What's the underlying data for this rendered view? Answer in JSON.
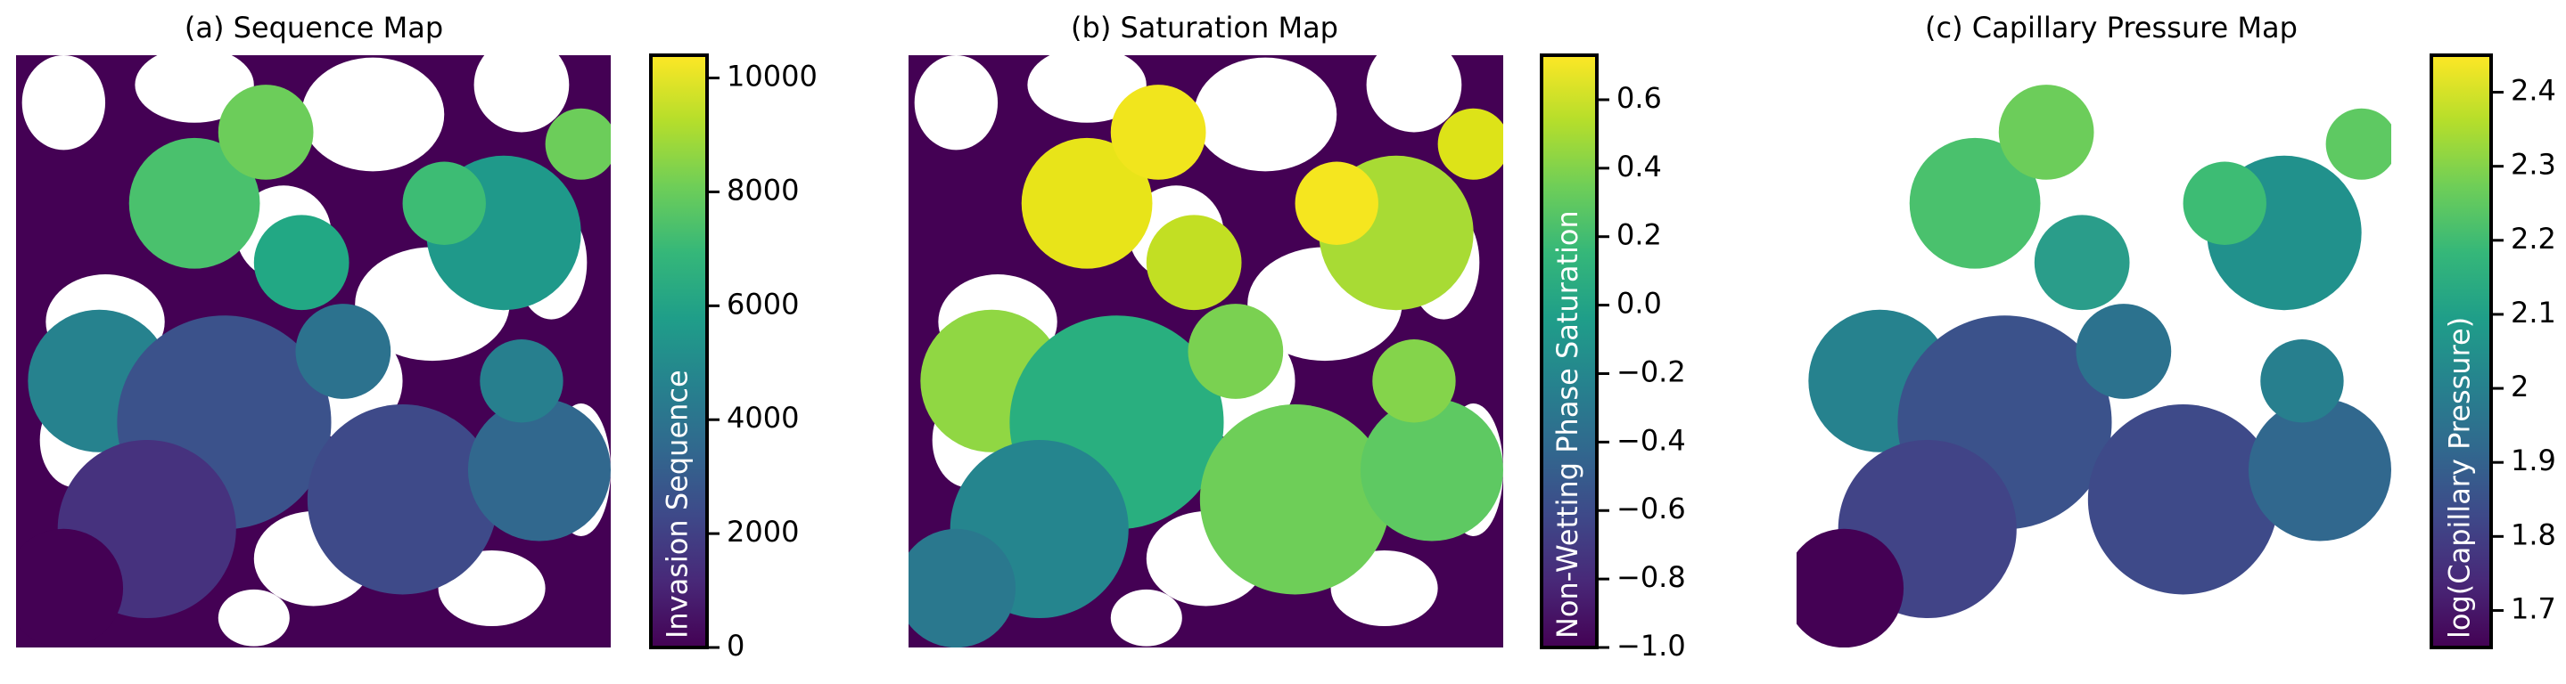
{
  "chart_data": [
    {
      "type": "image",
      "title": "(a) Sequence Map",
      "colorbar_label": "Invasion Sequence",
      "colormap": [
        "#440154",
        "#482878",
        "#3e4989",
        "#31688e",
        "#26828e",
        "#1f9e89",
        "#35b779",
        "#6ece58",
        "#b5de2b",
        "#fde725"
      ],
      "clim": [
        0,
        10400
      ],
      "cticks": [
        0,
        2000,
        4000,
        6000,
        8000,
        10000
      ]
    },
    {
      "type": "image",
      "title": "(b) Saturation Map",
      "colorbar_label": "Non-Wetting Phase Saturation",
      "colormap": [
        "#440154",
        "#482878",
        "#3e4989",
        "#31688e",
        "#26828e",
        "#1f9e89",
        "#35b779",
        "#6ece58",
        "#b5de2b",
        "#fde725"
      ],
      "clim": [
        -1.0,
        0.73
      ],
      "cticks": [
        {
          "value": -1.0,
          "label": "−1.0"
        },
        {
          "value": -0.8,
          "label": "−0.8"
        },
        {
          "value": -0.6,
          "label": "−0.6"
        },
        {
          "value": -0.4,
          "label": "−0.4"
        },
        {
          "value": -0.2,
          "label": "−0.2"
        },
        {
          "value": 0.0,
          "label": "0.0"
        },
        0.2,
        0.4,
        0.6
      ]
    },
    {
      "type": "image",
      "title": "(c) Capillary Pressure Map",
      "colorbar_label": "log(Capillary Pressure)",
      "colormap": [
        "#440154",
        "#482878",
        "#3e4989",
        "#31688e",
        "#26828e",
        "#1f9e89",
        "#35b779",
        "#6ece58",
        "#b5de2b",
        "#fde725"
      ],
      "clim": [
        1.65,
        2.45
      ],
      "cticks": [
        1.7,
        1.8,
        1.9,
        2.0,
        2.1,
        2.2,
        2.3,
        2.4
      ]
    }
  ]
}
